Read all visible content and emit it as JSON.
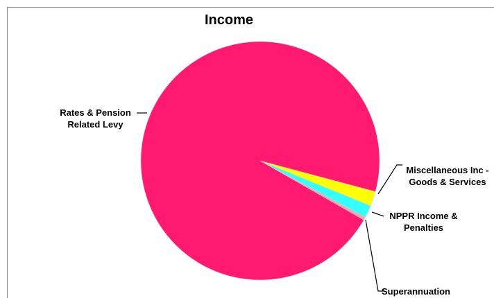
{
  "chart_data": {
    "type": "pie",
    "title": "Income",
    "categories": [
      "Miscellaneous Inc - Goods & Services",
      "NPPR Income & Penalties",
      "Superannuation",
      "Rates & Pension Related Levy"
    ],
    "values": [
      2.0,
      1.7,
      0.4,
      95.9
    ],
    "colors": [
      "#ffff00",
      "#33ffff",
      "#ff9fb0",
      "#ff1a6f"
    ]
  }
}
